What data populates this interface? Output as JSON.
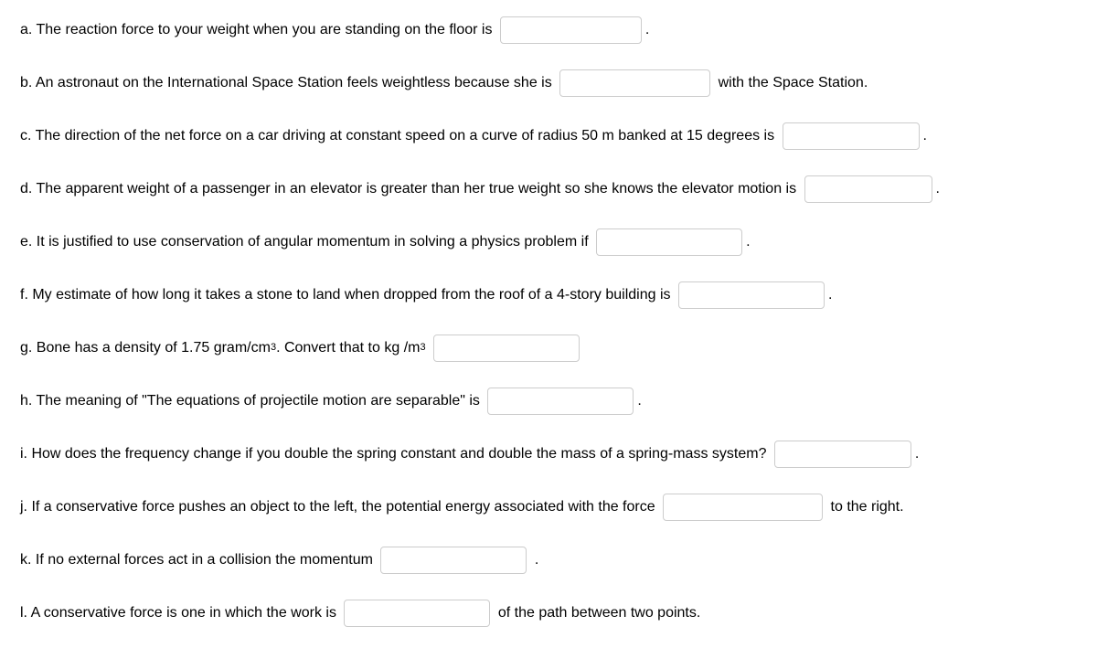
{
  "q": {
    "a": {
      "pre": "a. The reaction force to your weight when you are standing on the floor is ",
      "post": "."
    },
    "b": {
      "pre": "b. An astronaut on the International Space Station feels weightless because she is ",
      "post": " with the Space Station."
    },
    "c": {
      "pre": "c. The direction of the net force on a car driving at constant speed on a curve of radius 50 m banked at 15 degrees is ",
      "post": "."
    },
    "d": {
      "pre": "d. The apparent weight of a passenger in an elevator is greater than her true weight so she knows the elevator motion is ",
      "post": "."
    },
    "e": {
      "pre": "e. It is justified to use conservation of angular momentum in solving a physics problem if ",
      "post": "."
    },
    "f": {
      "pre": "f. My estimate of how long it takes a stone to land when dropped from the roof of a 4-story building is ",
      "post": "."
    },
    "g": {
      "pre1": "g. Bone has a density of 1.75 gram/cm",
      "sup1": "3",
      "pre2": ". Convert that to kg /m",
      "sup2": "3",
      "pre3": " "
    },
    "h": {
      "pre": "h. The meaning of \"The equations of projectile motion are separable\" is ",
      "post": "."
    },
    "i": {
      "pre": "i. How does the frequency change if you double the spring constant and double the mass of a spring-mass system? ",
      "post": "."
    },
    "j": {
      "pre": "j. If a conservative force pushes an object to the left, the potential energy associated with the force ",
      "post": " to the right."
    },
    "k": {
      "pre": "k. If no external forces act in a collision the momentum ",
      "post": " ."
    },
    "l": {
      "pre": "l. A conservative force is one in which the work is ",
      "post": " of the path between two points."
    }
  }
}
